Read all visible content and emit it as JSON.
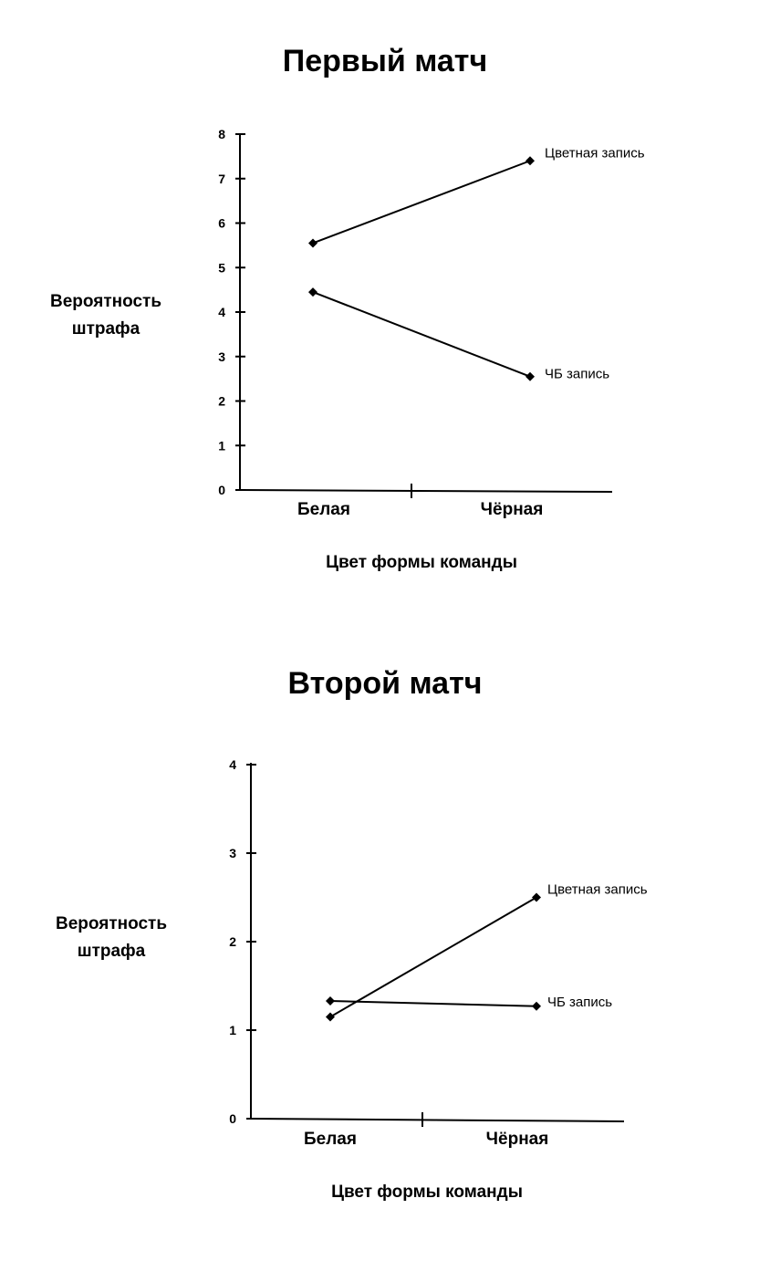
{
  "chart_data": [
    {
      "type": "line",
      "title": "Первый матч",
      "ylabel": [
        "Вероятность",
        "штрафа"
      ],
      "xlabel": "Цвет формы команды",
      "categories": [
        "Белая",
        "Чёрная"
      ],
      "ylim": [
        0,
        8
      ],
      "yticks": [
        0,
        1,
        2,
        3,
        4,
        5,
        6,
        7,
        8
      ],
      "grid": false,
      "series": [
        {
          "name": "Цветная запись",
          "values": [
            5.55,
            7.4
          ]
        },
        {
          "name": "ЧБ запись",
          "values": [
            4.45,
            2.55
          ]
        }
      ]
    },
    {
      "type": "line",
      "title": "Второй матч",
      "ylabel": [
        "Вероятность",
        "штрафа"
      ],
      "xlabel": "Цвет формы команды",
      "categories": [
        "Белая",
        "Чёрная"
      ],
      "ylim": [
        0,
        4
      ],
      "yticks": [
        0,
        1,
        2,
        3,
        4
      ],
      "grid": false,
      "series": [
        {
          "name": "Цветная запись",
          "values": [
            1.15,
            2.5
          ]
        },
        {
          "name": "ЧБ запись",
          "values": [
            1.33,
            1.27
          ]
        }
      ]
    }
  ]
}
